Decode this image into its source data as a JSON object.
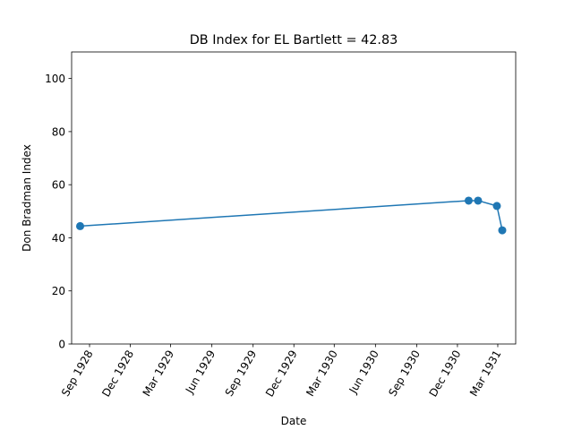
{
  "chart_data": {
    "type": "line",
    "title": "DB Index for EL Bartlett = 42.83",
    "xlabel": "Date",
    "ylabel": "Don Bradman Index",
    "ylim": [
      0,
      110
    ],
    "xlim": [
      "1928-07-23",
      "1931-04-10"
    ],
    "yticks": [
      0,
      20,
      40,
      60,
      80,
      100
    ],
    "xticks": [
      {
        "date": "1928-09-01",
        "label": "Sep 1928"
      },
      {
        "date": "1928-12-01",
        "label": "Dec 1928"
      },
      {
        "date": "1929-03-01",
        "label": "Mar 1929"
      },
      {
        "date": "1929-06-01",
        "label": "Jun 1929"
      },
      {
        "date": "1929-09-01",
        "label": "Sep 1929"
      },
      {
        "date": "1929-12-01",
        "label": "Dec 1929"
      },
      {
        "date": "1930-03-01",
        "label": "Mar 1930"
      },
      {
        "date": "1930-06-01",
        "label": "Jun 1930"
      },
      {
        "date": "1930-09-01",
        "label": "Sep 1930"
      },
      {
        "date": "1930-12-01",
        "label": "Dec 1930"
      },
      {
        "date": "1931-03-01",
        "label": "Mar 1931"
      }
    ],
    "series": [
      {
        "color": "#1f77b4",
        "points": [
          {
            "x": "1928-08-11",
            "y": 44.4
          },
          {
            "x": "1930-12-26",
            "y": 54.0
          },
          {
            "x": "1931-01-16",
            "y": 54.0
          },
          {
            "x": "1931-02-27",
            "y": 52.0
          },
          {
            "x": "1931-03-11",
            "y": 42.83
          }
        ]
      }
    ],
    "grid": false
  }
}
